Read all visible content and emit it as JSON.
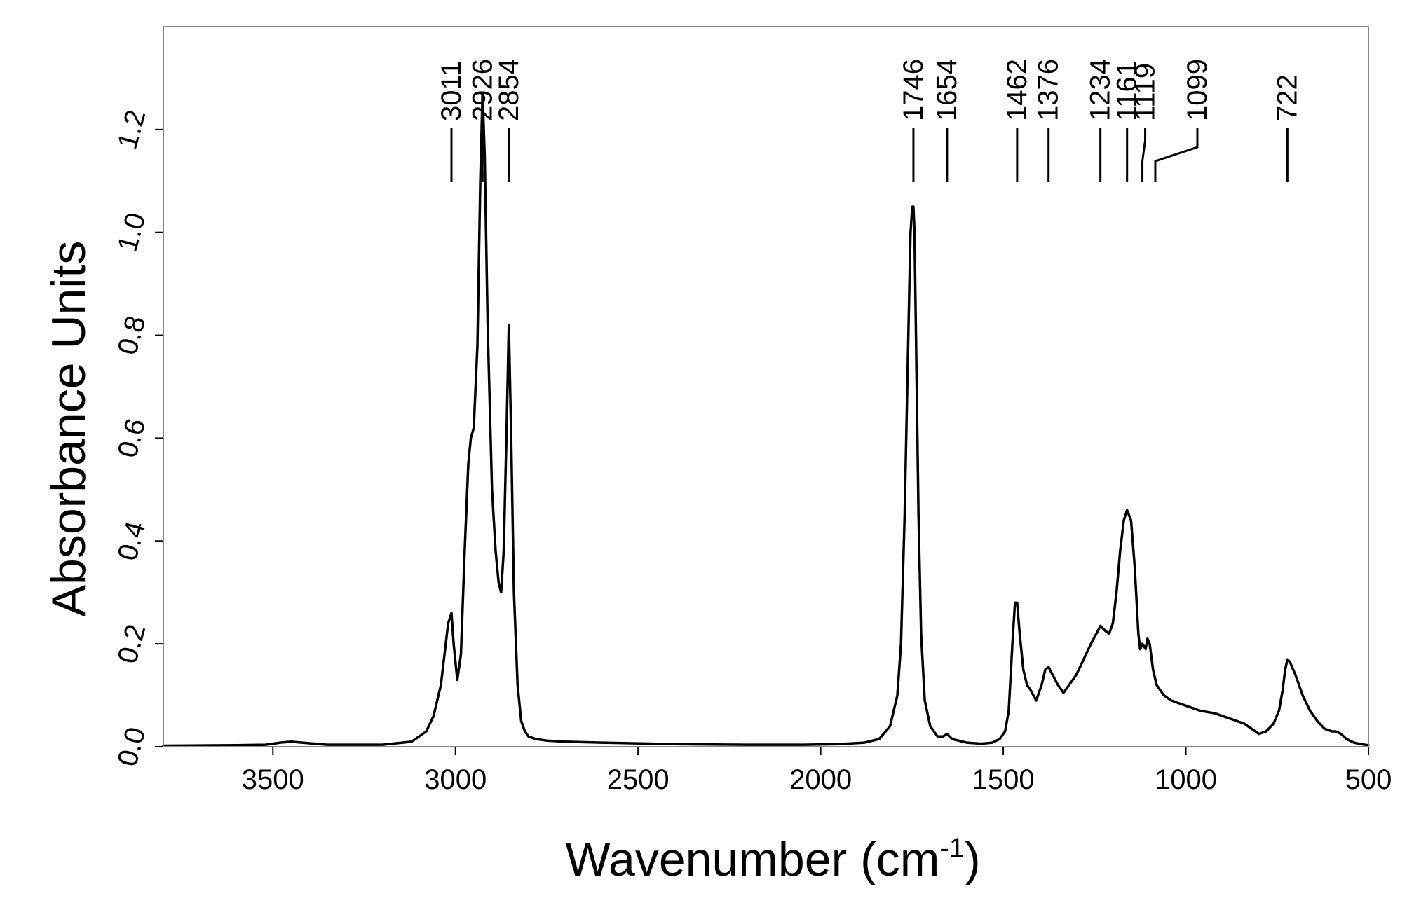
{
  "chart_data": {
    "type": "line",
    "title": "",
    "xlabel": "Wavenumber (cm",
    "xlabel_superscript": "-1",
    "xlabel_suffix": ")",
    "ylabel": "Absorbance Units",
    "xlim": [
      3800,
      500
    ],
    "ylim": [
      0,
      1.4
    ],
    "x_reversed": true,
    "grid": false,
    "legend": "none",
    "line_color": "#000000",
    "x_ticks": [
      3500,
      3000,
      2500,
      2000,
      1500,
      1000,
      500
    ],
    "x_tick_labels": [
      "3500",
      "3000",
      "2500",
      "2000",
      "1500",
      "1000",
      "500"
    ],
    "y_ticks": [
      0.0,
      0.2,
      0.4,
      0.6,
      0.8,
      1.0,
      1.2
    ],
    "y_tick_labels": [
      "0.0",
      "0.2",
      "0.4",
      "0.6",
      "0.8",
      "1.0",
      "1.2"
    ],
    "peak_annotations": [
      "3011",
      "2926",
      "2854",
      "1746",
      "1654",
      "1462",
      "1376",
      "1234",
      "1161",
      "1119",
      "1099",
      "722"
    ],
    "series": [
      {
        "x": [
          3800,
          3600,
          3520,
          3480,
          3450,
          3420,
          3350,
          3200,
          3120,
          3080,
          3060,
          3040,
          3030,
          3020,
          3011,
          3005,
          2995,
          2985,
          2975,
          2965,
          2958,
          2950,
          2940,
          2932,
          2926,
          2920,
          2912,
          2900,
          2890,
          2882,
          2875,
          2868,
          2860,
          2854,
          2848,
          2840,
          2830,
          2820,
          2810,
          2800,
          2780,
          2750,
          2700,
          2600,
          2400,
          2200,
          2050,
          1950,
          1880,
          1840,
          1810,
          1790,
          1780,
          1770,
          1760,
          1754,
          1749,
          1746,
          1743,
          1738,
          1732,
          1725,
          1715,
          1700,
          1680,
          1665,
          1654,
          1640,
          1600,
          1560,
          1530,
          1510,
          1495,
          1485,
          1475,
          1468,
          1462,
          1455,
          1445,
          1435,
          1425,
          1410,
          1395,
          1385,
          1376,
          1365,
          1350,
          1335,
          1320,
          1300,
          1280,
          1260,
          1245,
          1234,
          1220,
          1210,
          1200,
          1190,
          1180,
          1170,
          1161,
          1150,
          1140,
          1130,
          1125,
          1119,
          1110,
          1105,
          1099,
          1090,
          1080,
          1060,
          1040,
          1000,
          960,
          920,
          880,
          840,
          820,
          800,
          780,
          760,
          745,
          735,
          728,
          722,
          715,
          700,
          680,
          660,
          640,
          620,
          600,
          590,
          575,
          560,
          540,
          520,
          500
        ],
        "y": [
          0.002,
          0.003,
          0.004,
          0.008,
          0.01,
          0.008,
          0.004,
          0.004,
          0.01,
          0.03,
          0.06,
          0.12,
          0.18,
          0.24,
          0.26,
          0.2,
          0.13,
          0.18,
          0.38,
          0.55,
          0.6,
          0.62,
          0.78,
          1.1,
          1.27,
          1.15,
          0.82,
          0.5,
          0.38,
          0.32,
          0.3,
          0.38,
          0.62,
          0.82,
          0.62,
          0.3,
          0.12,
          0.05,
          0.03,
          0.02,
          0.015,
          0.012,
          0.01,
          0.008,
          0.005,
          0.004,
          0.004,
          0.005,
          0.008,
          0.015,
          0.04,
          0.1,
          0.2,
          0.45,
          0.8,
          1.0,
          1.05,
          1.05,
          1.0,
          0.75,
          0.45,
          0.22,
          0.09,
          0.04,
          0.02,
          0.02,
          0.025,
          0.015,
          0.008,
          0.006,
          0.008,
          0.015,
          0.03,
          0.07,
          0.2,
          0.28,
          0.28,
          0.22,
          0.15,
          0.12,
          0.11,
          0.09,
          0.12,
          0.15,
          0.155,
          0.14,
          0.12,
          0.105,
          0.12,
          0.14,
          0.17,
          0.2,
          0.22,
          0.235,
          0.225,
          0.22,
          0.24,
          0.3,
          0.38,
          0.44,
          0.46,
          0.44,
          0.35,
          0.22,
          0.19,
          0.2,
          0.19,
          0.21,
          0.2,
          0.15,
          0.12,
          0.1,
          0.09,
          0.08,
          0.07,
          0.065,
          0.055,
          0.045,
          0.035,
          0.025,
          0.03,
          0.045,
          0.07,
          0.11,
          0.15,
          0.17,
          0.165,
          0.14,
          0.1,
          0.07,
          0.05,
          0.035,
          0.03,
          0.03,
          0.025,
          0.015,
          0.008,
          0.005,
          0.003
        ]
      }
    ]
  }
}
